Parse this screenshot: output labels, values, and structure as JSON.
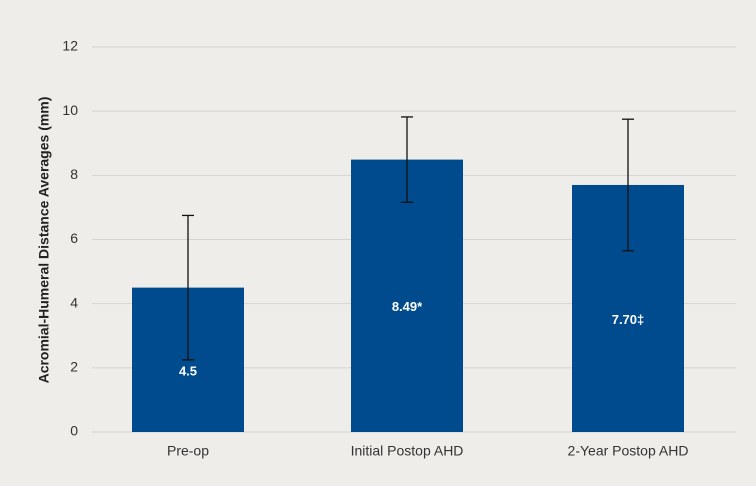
{
  "chart_data": {
    "type": "bar",
    "ylabel": "Acromial-Humeral Distance Averages (mm)",
    "categories": [
      "Pre-op",
      "Initial Postop AHD",
      "2-Year Postop AHD"
    ],
    "values": [
      4.5,
      8.49,
      7.7
    ],
    "value_labels": [
      "4.5",
      "8.49*",
      "7.70‡"
    ],
    "errors": [
      2.25,
      1.33,
      2.05
    ],
    "color": "#004b8d",
    "ylim": [
      0,
      12
    ],
    "yticks": [
      0,
      2,
      4,
      6,
      8,
      10,
      12
    ],
    "grid": true
  }
}
